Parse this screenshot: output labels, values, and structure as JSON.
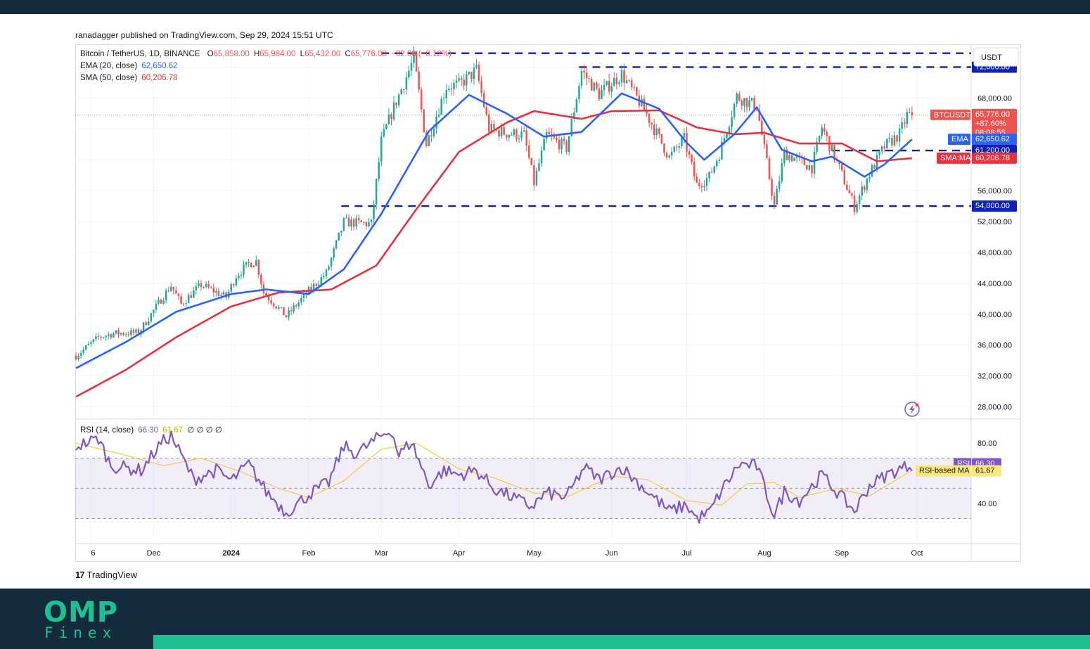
{
  "published": "ranadagger published on TradingView.com, Sep 29, 2024 15:51 UTC",
  "legend": {
    "symbol": "Bitcoin / TetherUS, 1D, BINANCE",
    "o_label": "O",
    "o": "65,858.00",
    "h_label": "H",
    "h": "65,984.00",
    "l_label": "L",
    "l": "65,432.00",
    "c_label": "C",
    "c": "65,776.00",
    "change": "−82.00 (−0.12%)",
    "ema_label": "EMA (20, close)",
    "ema_value": "62,650.62",
    "sma_label": "SMA (50, close)",
    "sma_value": "60,206.78",
    "rsi_label": "RSI (14, close)",
    "rsi_value": "66.30",
    "rsi_ma_value": "61.67",
    "rsi_extra": "∅ ∅ ∅ ∅"
  },
  "currency_button": "USDT",
  "price_labels": {
    "btc_name": "BTCUSDT",
    "btc_price": "65,776.00",
    "btc_change": "+87.60%",
    "btc_countdown": "08:08:55",
    "ema_name": "EMA",
    "ema_price": "62,650.62",
    "sma_name": "SMA:MA",
    "sma_price": "60,206.78",
    "level_72": "72,000.00",
    "level_61": "61,200.00",
    "level_54": "54,000.00",
    "rsi_name": "RSI",
    "rsi_price": "66.30",
    "rsi_ma_name": "RSI-based MA",
    "rsi_ma_price": "61.67"
  },
  "colors": {
    "up": "#26a69a",
    "down": "#ef5350",
    "ema": "#2962ff",
    "sma": "#e5323f",
    "level": "#0d1fb5",
    "rsi": "#7e57c2",
    "rsi_ma": "#f2cc3d",
    "brand": "#1fbf94",
    "dark": "#132b3d"
  },
  "watermark": "TradingView",
  "brand": {
    "name": "OMP",
    "sub": "Finex"
  },
  "chart_data": {
    "type": "candlestick",
    "symbol": "BTCUSDT",
    "price_axis": {
      "ticks": [
        "72,000.00",
        "68,000.00",
        "64,000.00",
        "60,000.00",
        "56,000.00",
        "52,000.00",
        "48,000.00",
        "44,000.00",
        "40,000.00",
        "36,000.00",
        "32,000.00",
        "28,000.00"
      ],
      "range": [
        26500,
        74500
      ]
    },
    "rsi_axis": {
      "ticks": [
        "80.00",
        "40.00"
      ],
      "range": [
        14,
        95
      ],
      "bands": [
        70,
        50,
        30
      ]
    },
    "x_ticks": [
      "6",
      "Dec",
      "2024",
      "Feb",
      "Mar",
      "Apr",
      "May",
      "Jun",
      "Jul",
      "Aug",
      "Sep",
      "Oct"
    ],
    "x_tick_dates": [
      "2023-11-06",
      "2023-12-01",
      "2024-01-01",
      "2024-02-01",
      "2024-03-01",
      "2024-04-01",
      "2024-05-01",
      "2024-06-01",
      "2024-07-01",
      "2024-08-01",
      "2024-09-01",
      "2024-10-01"
    ],
    "date_range": [
      "2023-10-31",
      "2024-10-01"
    ],
    "horizontal_levels": [
      73800,
      72000,
      61200,
      54000
    ],
    "price_path": [
      [
        "2023-10-31",
        34600
      ],
      [
        "2023-11-09",
        37000
      ],
      [
        "2023-11-15",
        37500
      ],
      [
        "2023-11-25",
        37600
      ],
      [
        "2023-12-04",
        41900
      ],
      [
        "2023-12-08",
        43700
      ],
      [
        "2023-12-12",
        41300
      ],
      [
        "2023-12-20",
        43800
      ],
      [
        "2023-12-30",
        42200
      ],
      [
        "2024-01-03",
        45000
      ],
      [
        "2024-01-08",
        46500
      ],
      [
        "2024-01-11",
        46900
      ],
      [
        "2024-01-14",
        42800
      ],
      [
        "2024-01-23",
        39700
      ],
      [
        "2024-02-01",
        43000
      ],
      [
        "2024-02-08",
        45300
      ],
      [
        "2024-02-15",
        51900
      ],
      [
        "2024-02-26",
        51700
      ],
      [
        "2024-03-01",
        62400
      ],
      [
        "2024-03-05",
        66000
      ],
      [
        "2024-03-14",
        73100
      ],
      [
        "2024-03-19",
        62000
      ],
      [
        "2024-03-27",
        69500
      ],
      [
        "2024-04-01",
        69700
      ],
      [
        "2024-04-08",
        71600
      ],
      [
        "2024-04-13",
        64000
      ],
      [
        "2024-04-19",
        63500
      ],
      [
        "2024-04-27",
        63200
      ],
      [
        "2024-05-01",
        57000
      ],
      [
        "2024-05-06",
        63200
      ],
      [
        "2024-05-14",
        61500
      ],
      [
        "2024-05-20",
        71500
      ],
      [
        "2024-05-27",
        68500
      ],
      [
        "2024-06-05",
        71100
      ],
      [
        "2024-06-14",
        66500
      ],
      [
        "2024-06-24",
        60300
      ],
      [
        "2024-06-30",
        62700
      ],
      [
        "2024-07-05",
        56700
      ],
      [
        "2024-07-10",
        57800
      ],
      [
        "2024-07-14",
        60800
      ],
      [
        "2024-07-21",
        68200
      ],
      [
        "2024-07-29",
        66900
      ],
      [
        "2024-08-05",
        54000
      ],
      [
        "2024-08-09",
        60900
      ],
      [
        "2024-08-20",
        59000
      ],
      [
        "2024-08-24",
        64200
      ],
      [
        "2024-08-31",
        58900
      ],
      [
        "2024-09-06",
        53900
      ],
      [
        "2024-09-12",
        58200
      ],
      [
        "2024-09-18",
        61700
      ],
      [
        "2024-09-24",
        63300
      ],
      [
        "2024-09-27",
        65800
      ],
      [
        "2024-09-29",
        65776
      ]
    ],
    "ema_path": [
      [
        "2023-10-31",
        33000
      ],
      [
        "2023-11-20",
        36400
      ],
      [
        "2023-12-10",
        40300
      ],
      [
        "2024-01-01",
        42600
      ],
      [
        "2024-01-15",
        43200
      ],
      [
        "2024-02-01",
        42600
      ],
      [
        "2024-02-15",
        45800
      ],
      [
        "2024-03-01",
        53000
      ],
      [
        "2024-03-20",
        63700
      ],
      [
        "2024-04-05",
        68400
      ],
      [
        "2024-04-20",
        66000
      ],
      [
        "2024-05-05",
        63000
      ],
      [
        "2024-05-20",
        63600
      ],
      [
        "2024-06-05",
        68600
      ],
      [
        "2024-06-20",
        66600
      ],
      [
        "2024-07-01",
        62200
      ],
      [
        "2024-07-08",
        60000
      ],
      [
        "2024-07-20",
        63300
      ],
      [
        "2024-07-29",
        66800
      ],
      [
        "2024-08-08",
        61300
      ],
      [
        "2024-08-20",
        59800
      ],
      [
        "2024-08-28",
        60400
      ],
      [
        "2024-09-10",
        57800
      ],
      [
        "2024-09-18",
        59400
      ],
      [
        "2024-09-29",
        62650
      ]
    ],
    "sma_path": [
      [
        "2023-10-31",
        29300
      ],
      [
        "2023-11-20",
        32800
      ],
      [
        "2023-12-10",
        37000
      ],
      [
        "2024-01-01",
        41000
      ],
      [
        "2024-01-20",
        42800
      ],
      [
        "2024-02-10",
        43200
      ],
      [
        "2024-02-28",
        46300
      ],
      [
        "2024-03-15",
        53600
      ],
      [
        "2024-04-01",
        61000
      ],
      [
        "2024-04-20",
        64800
      ],
      [
        "2024-05-01",
        66300
      ],
      [
        "2024-05-20",
        65300
      ],
      [
        "2024-06-01",
        66300
      ],
      [
        "2024-06-20",
        66400
      ],
      [
        "2024-07-05",
        64200
      ],
      [
        "2024-07-20",
        63300
      ],
      [
        "2024-08-01",
        63500
      ],
      [
        "2024-08-15",
        62100
      ],
      [
        "2024-09-01",
        62100
      ],
      [
        "2024-09-15",
        59800
      ],
      [
        "2024-09-29",
        60207
      ]
    ],
    "rsi_path": [
      [
        "2023-10-31",
        78
      ],
      [
        "2023-11-09",
        83
      ],
      [
        "2023-11-14",
        65
      ],
      [
        "2023-11-26",
        62
      ],
      [
        "2023-12-04",
        80
      ],
      [
        "2023-12-08",
        85
      ],
      [
        "2023-12-17",
        56
      ],
      [
        "2023-12-26",
        62
      ],
      [
        "2024-01-01",
        55
      ],
      [
        "2024-01-08",
        66
      ],
      [
        "2024-01-15",
        48
      ],
      [
        "2024-01-23",
        34
      ],
      [
        "2024-02-01",
        46
      ],
      [
        "2024-02-09",
        54
      ],
      [
        "2024-02-15",
        78
      ],
      [
        "2024-02-20",
        73
      ],
      [
        "2024-03-01",
        85
      ],
      [
        "2024-03-05",
        89
      ],
      [
        "2024-03-08",
        72
      ],
      [
        "2024-03-13",
        81
      ],
      [
        "2024-03-20",
        52
      ],
      [
        "2024-03-26",
        62
      ],
      [
        "2024-04-01",
        59
      ],
      [
        "2024-04-08",
        62
      ],
      [
        "2024-04-15",
        50
      ],
      [
        "2024-04-20",
        46
      ],
      [
        "2024-04-30",
        38
      ],
      [
        "2024-05-06",
        47
      ],
      [
        "2024-05-14",
        44
      ],
      [
        "2024-05-21",
        64
      ],
      [
        "2024-05-27",
        56
      ],
      [
        "2024-06-05",
        64
      ],
      [
        "2024-06-14",
        50
      ],
      [
        "2024-06-24",
        35
      ],
      [
        "2024-07-01",
        39
      ],
      [
        "2024-07-05",
        30
      ],
      [
        "2024-07-10",
        34
      ],
      [
        "2024-07-15",
        49
      ],
      [
        "2024-07-22",
        66
      ],
      [
        "2024-07-29",
        65
      ],
      [
        "2024-08-05",
        32
      ],
      [
        "2024-08-09",
        48
      ],
      [
        "2024-08-15",
        42
      ],
      [
        "2024-08-24",
        59
      ],
      [
        "2024-09-01",
        44
      ],
      [
        "2024-09-06",
        35
      ],
      [
        "2024-09-12",
        52
      ],
      [
        "2024-09-20",
        60
      ],
      [
        "2024-09-29",
        66
      ]
    ],
    "rsi_ma_path": [
      [
        "2023-10-31",
        80
      ],
      [
        "2023-11-20",
        72
      ],
      [
        "2023-12-05",
        65
      ],
      [
        "2023-12-20",
        70
      ],
      [
        "2024-01-05",
        61
      ],
      [
        "2024-01-20",
        50
      ],
      [
        "2024-02-01",
        44
      ],
      [
        "2024-02-15",
        55
      ],
      [
        "2024-03-01",
        76
      ],
      [
        "2024-03-15",
        80
      ],
      [
        "2024-04-01",
        63
      ],
      [
        "2024-04-15",
        57
      ],
      [
        "2024-05-01",
        47
      ],
      [
        "2024-05-15",
        45
      ],
      [
        "2024-06-01",
        58
      ],
      [
        "2024-06-15",
        56
      ],
      [
        "2024-07-01",
        42
      ],
      [
        "2024-07-15",
        39
      ],
      [
        "2024-07-25",
        53
      ],
      [
        "2024-08-05",
        54
      ],
      [
        "2024-08-15",
        44
      ],
      [
        "2024-08-30",
        50
      ],
      [
        "2024-09-12",
        45
      ],
      [
        "2024-09-29",
        62
      ]
    ]
  }
}
